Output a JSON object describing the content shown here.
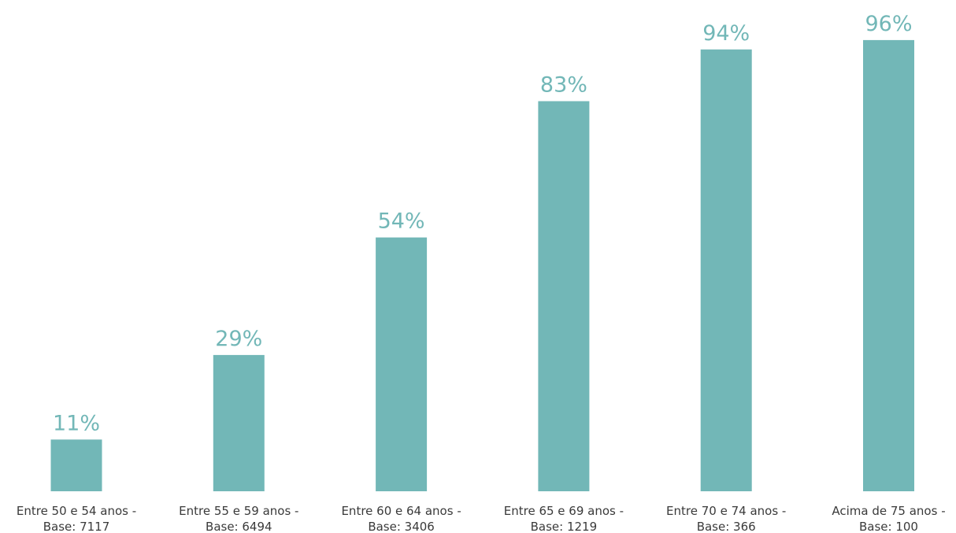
{
  "chart_data": {
    "type": "bar",
    "categories": [
      [
        "Entre 50 e 54 anos -",
        "Base: 7117"
      ],
      [
        "Entre 55 e 59 anos -",
        "Base: 6494"
      ],
      [
        "Entre 60 e 64 anos -",
        "Base: 3406"
      ],
      [
        "Entre 65 e 69 anos -",
        "Base: 1219"
      ],
      [
        "Entre 70 e 74 anos -",
        "Base: 366"
      ],
      [
        "Acima de 75 anos -",
        "Base: 100"
      ]
    ],
    "values": [
      11,
      29,
      54,
      83,
      94,
      96
    ],
    "value_labels": [
      "11%",
      "29%",
      "54%",
      "83%",
      "94%",
      "96%"
    ],
    "ylim": [
      0,
      100
    ],
    "grid": false,
    "legend": "none",
    "bar_color": "#72b7b7",
    "label_color": "#72b7b7"
  }
}
